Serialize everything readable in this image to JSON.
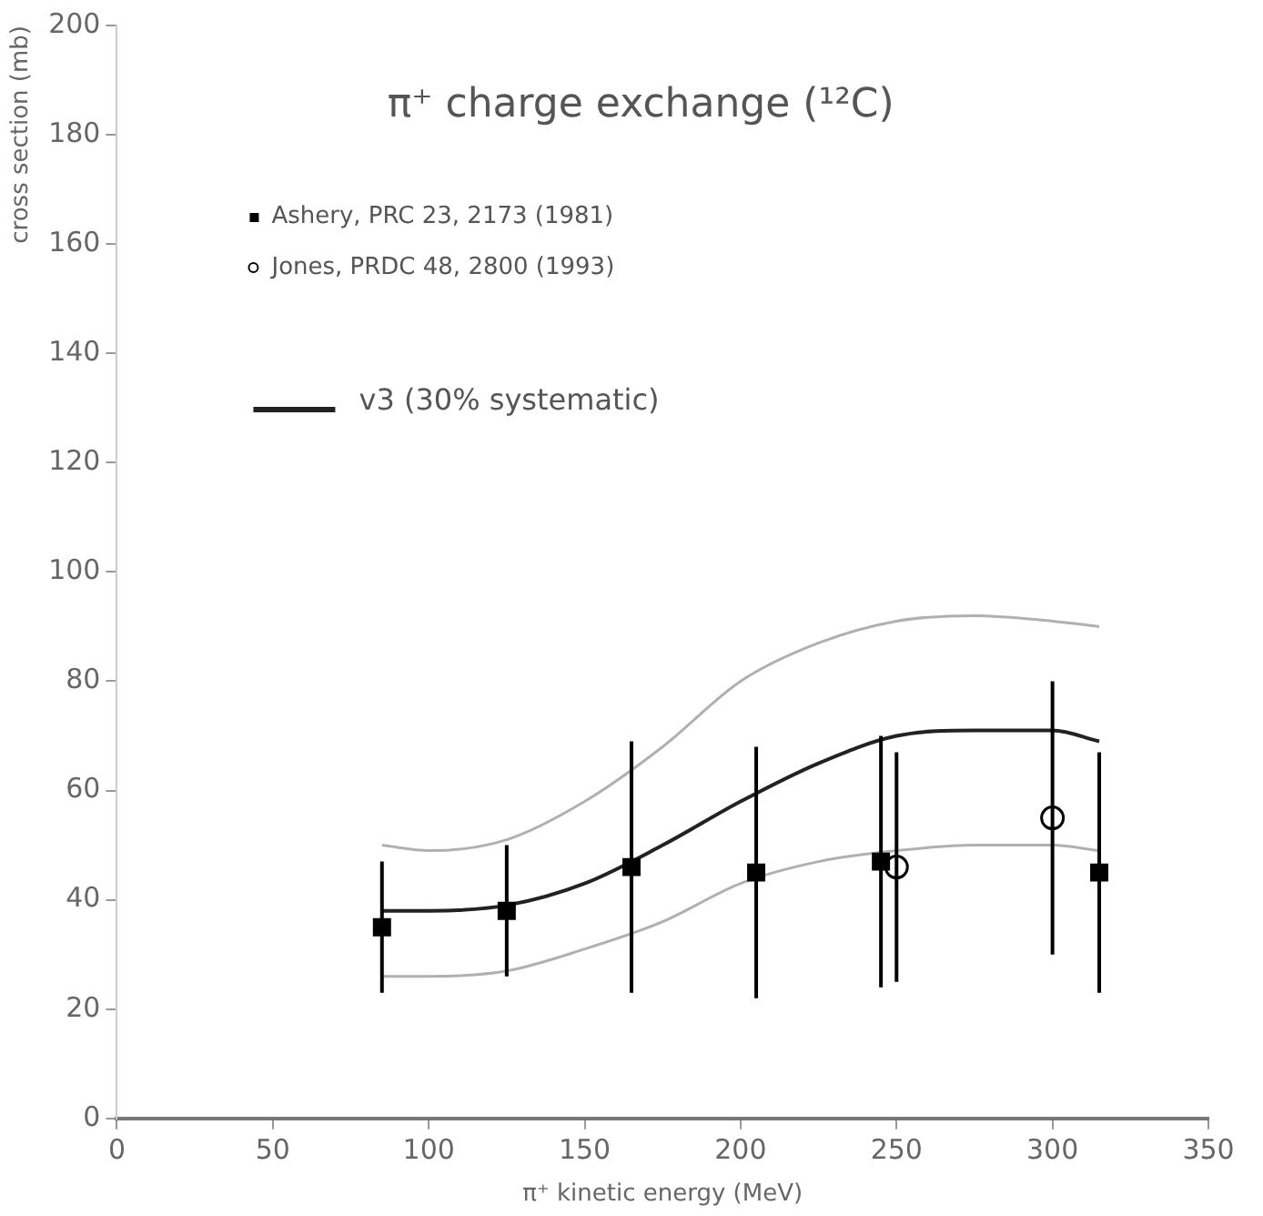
{
  "chart_data": {
    "type": "scatter",
    "title": "π⁺ charge exchange (¹²C)",
    "xlabel": "π⁺ kinetic energy (MeV)",
    "ylabel": "cross section (mb)",
    "xlim": [
      0,
      350
    ],
    "xticks": [
      0,
      50,
      100,
      150,
      200,
      250,
      300,
      350
    ],
    "ylim": [
      0,
      200
    ],
    "yticks": [
      0,
      20,
      40,
      60,
      80,
      100,
      120,
      140,
      160,
      180,
      200
    ],
    "grid": false,
    "legend": "top left",
    "series": [
      {
        "name": "Ashery, PRC 23, 2173 (1981)",
        "marker": "square",
        "color": "#000000",
        "x": [
          85,
          125,
          165,
          205,
          245,
          315
        ],
        "values": [
          35,
          38,
          46,
          45,
          47,
          45
        ],
        "errors": [
          12,
          12,
          23,
          23,
          23,
          22
        ]
      },
      {
        "name": "Jones, PRDC 48, 2800 (1993)",
        "marker": "circle",
        "color": "#000000",
        "x": [
          250,
          300
        ],
        "values": [
          46,
          55
        ],
        "errors": [
          21,
          25
        ]
      },
      {
        "name": "v3 (30% systematic)",
        "type": "line",
        "marker": "none",
        "color": "#222222",
        "x": [
          85,
          100,
          125,
          150,
          175,
          200,
          225,
          250,
          275,
          300,
          315
        ],
        "values": [
          38,
          38,
          39,
          43,
          50,
          58,
          65,
          70,
          71,
          71,
          69
        ]
      },
      {
        "type": "line",
        "marker": "none",
        "color": "#b0b0b0",
        "x": [
          85,
          100,
          125,
          150,
          175,
          200,
          225,
          250,
          275,
          300,
          315
        ],
        "values": [
          26,
          26,
          27,
          31,
          36,
          43,
          47,
          49,
          50,
          50,
          49
        ]
      },
      {
        "type": "line",
        "marker": "none",
        "color": "#b0b0b0",
        "x": [
          85,
          100,
          125,
          150,
          175,
          200,
          225,
          250,
          275,
          300,
          315
        ],
        "values": [
          50,
          49,
          51,
          58,
          68,
          80,
          87,
          91,
          92,
          91,
          90
        ]
      }
    ]
  }
}
